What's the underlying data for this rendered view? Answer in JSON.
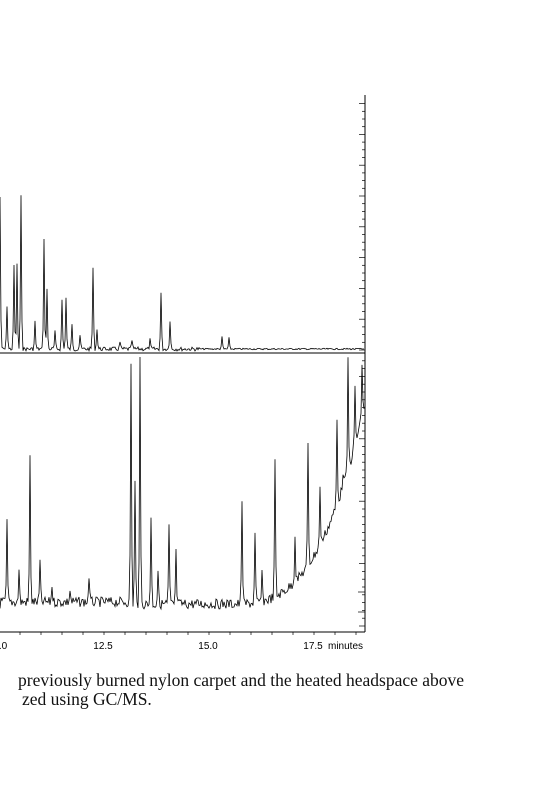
{
  "figure": {
    "x_tick_labels": [
      ".0",
      "12.5",
      "15.0",
      "17.5"
    ],
    "x_unit": "minutes"
  },
  "caption": {
    "lines": [
      "previously burned nylon carpet and the heated headspace above",
      "zed using GC/MS."
    ]
  }
}
